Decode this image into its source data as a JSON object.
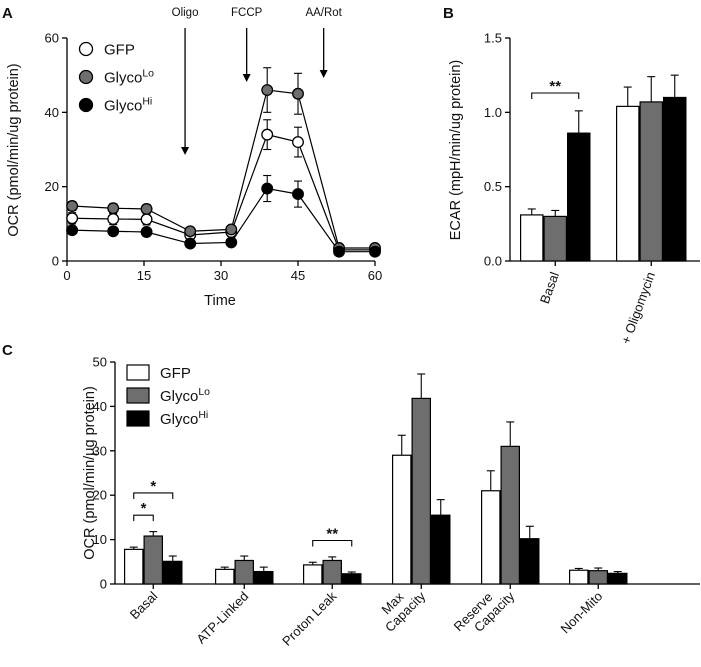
{
  "chart_data": [
    {
      "panel": "A",
      "type": "line",
      "xlabel": "Time",
      "ylabel": "OCR (pmol/min/ug protein)",
      "xlim": [
        0,
        60
      ],
      "ylim": [
        0,
        60
      ],
      "xticks": [
        "0",
        "15",
        "30",
        "45",
        "60"
      ],
      "yticks": [
        "0",
        "20",
        "40",
        "60"
      ],
      "x": [
        1,
        9,
        15.5,
        24,
        32,
        39,
        45,
        53,
        60
      ],
      "series": [
        {
          "name": "GFP",
          "marker": "open-circle",
          "color": "#ffffff",
          "values": [
            11.5,
            11.3,
            11.2,
            7.0,
            7.8,
            34.0,
            32.0,
            3.0,
            3.0
          ],
          "errors": [
            1.5,
            1.5,
            1.5,
            1.2,
            1.2,
            4.0,
            4.0,
            0.8,
            0.8
          ]
        },
        {
          "name": "GlycoLo",
          "marker": "gray-circle",
          "color": "#6e6e6e",
          "values": [
            14.8,
            14.2,
            14.0,
            8.0,
            8.5,
            46.0,
            45.0,
            3.5,
            3.5
          ],
          "errors": [
            1.2,
            1.2,
            1.2,
            1.0,
            1.0,
            6.0,
            5.5,
            0.8,
            0.8
          ]
        },
        {
          "name": "GlycoHi",
          "marker": "black-circle",
          "color": "#000000",
          "values": [
            8.3,
            8.0,
            7.8,
            4.7,
            5.0,
            19.5,
            18.0,
            2.5,
            2.5
          ],
          "errors": [
            1.0,
            1.0,
            1.0,
            0.8,
            0.8,
            3.5,
            3.5,
            0.8,
            0.8
          ]
        }
      ],
      "injections": [
        {
          "label": "Oligo",
          "x": 23
        },
        {
          "label": "FCCP",
          "x": 35
        },
        {
          "label": "AA/Rot",
          "x": 50
        }
      ]
    },
    {
      "panel": "B",
      "type": "bar",
      "ylabel": "ECAR (mpH/min/ug protein)",
      "ylim": [
        0,
        1.5
      ],
      "yticks": [
        "0.0",
        "0.5",
        "1.0",
        "1.5"
      ],
      "categories": [
        "Basal",
        "+ Oligomycin"
      ],
      "series": [
        {
          "name": "GFP",
          "color": "#ffffff",
          "values": [
            0.31,
            1.04
          ],
          "errors": [
            0.04,
            0.13
          ]
        },
        {
          "name": "GlycoLo",
          "color": "#6e6e6e",
          "values": [
            0.3,
            1.07
          ],
          "errors": [
            0.04,
            0.17
          ]
        },
        {
          "name": "GlycoHi",
          "color": "#000000",
          "values": [
            0.86,
            1.1
          ],
          "errors": [
            0.15,
            0.15
          ]
        }
      ],
      "significance": [
        {
          "label": "**",
          "category": 0,
          "from_series": 0,
          "to_series": 2,
          "level": 1.13
        }
      ]
    },
    {
      "panel": "C",
      "type": "bar",
      "ylabel": "OCR (pmol/min/μg protein)",
      "ylim": [
        0,
        50
      ],
      "yticks": [
        "0",
        "10",
        "20",
        "30",
        "40",
        "50"
      ],
      "categories": [
        "Basal",
        "ATP-Linked",
        "Proton Leak",
        "Max\nCapacity",
        "Reserve\nCapacity",
        "Non-Mito"
      ],
      "series": [
        {
          "name": "GFP",
          "color": "#ffffff",
          "values": [
            7.8,
            3.3,
            4.3,
            29.0,
            21.0,
            3.1
          ],
          "errors": [
            0.5,
            0.5,
            0.6,
            4.5,
            4.5,
            0.4
          ]
        },
        {
          "name": "GlycoLo",
          "color": "#6e6e6e",
          "values": [
            10.8,
            5.3,
            5.3,
            41.8,
            31.0,
            3.0
          ],
          "errors": [
            1.0,
            1.0,
            0.8,
            5.5,
            5.5,
            0.6
          ]
        },
        {
          "name": "GlycoHi",
          "color": "#000000",
          "values": [
            5.1,
            2.8,
            2.3,
            15.5,
            10.2,
            2.4
          ],
          "errors": [
            1.2,
            1.0,
            0.4,
            3.5,
            2.8,
            0.4
          ]
        }
      ],
      "significance": [
        {
          "label": "*",
          "category": 0,
          "from_series": 0,
          "to_series": 1,
          "level": 15.5
        },
        {
          "label": "*",
          "category": 0,
          "from_series": 0,
          "to_series": 2,
          "level": 20.5
        },
        {
          "label": "**",
          "category": 2,
          "from_series": 0,
          "to_series": 2,
          "level": 9.8
        }
      ]
    }
  ],
  "panel_letters": [
    "A",
    "B",
    "C"
  ],
  "legend": [
    {
      "base": "GFP",
      "sup": ""
    },
    {
      "base": "Glyco",
      "sup": "Lo"
    },
    {
      "base": "Glyco",
      "sup": "Hi"
    }
  ]
}
